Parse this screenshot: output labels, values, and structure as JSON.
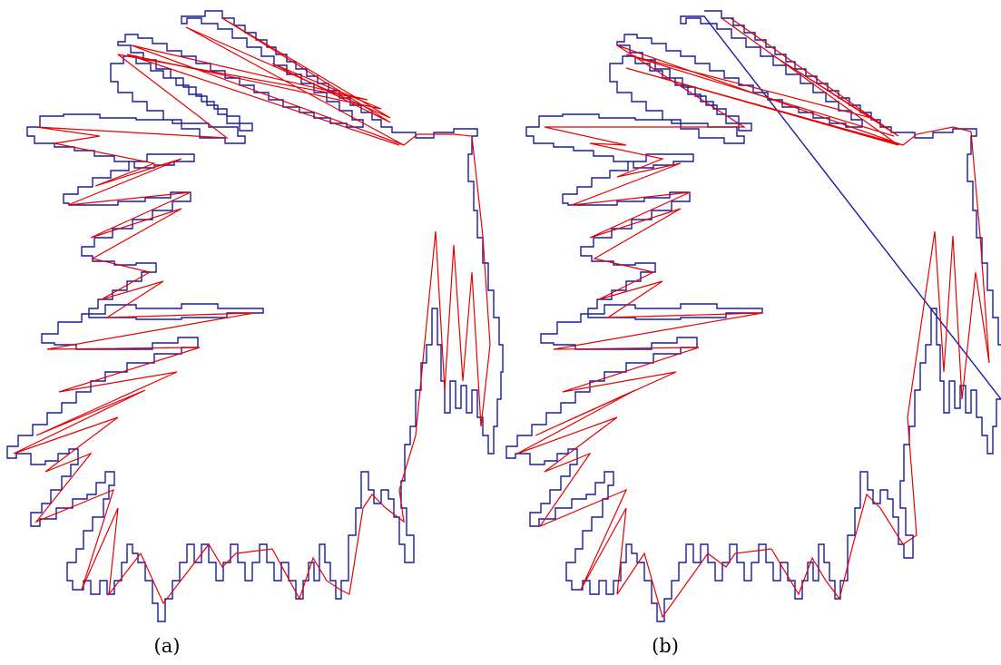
{
  "figure": {
    "panels": [
      {
        "id": "a",
        "caption": "(a)"
      },
      {
        "id": "b",
        "caption": "(b)"
      }
    ],
    "colors": {
      "contour": "#1a1aa6",
      "approximation": "#e60000",
      "background": "#ffffff"
    }
  }
}
